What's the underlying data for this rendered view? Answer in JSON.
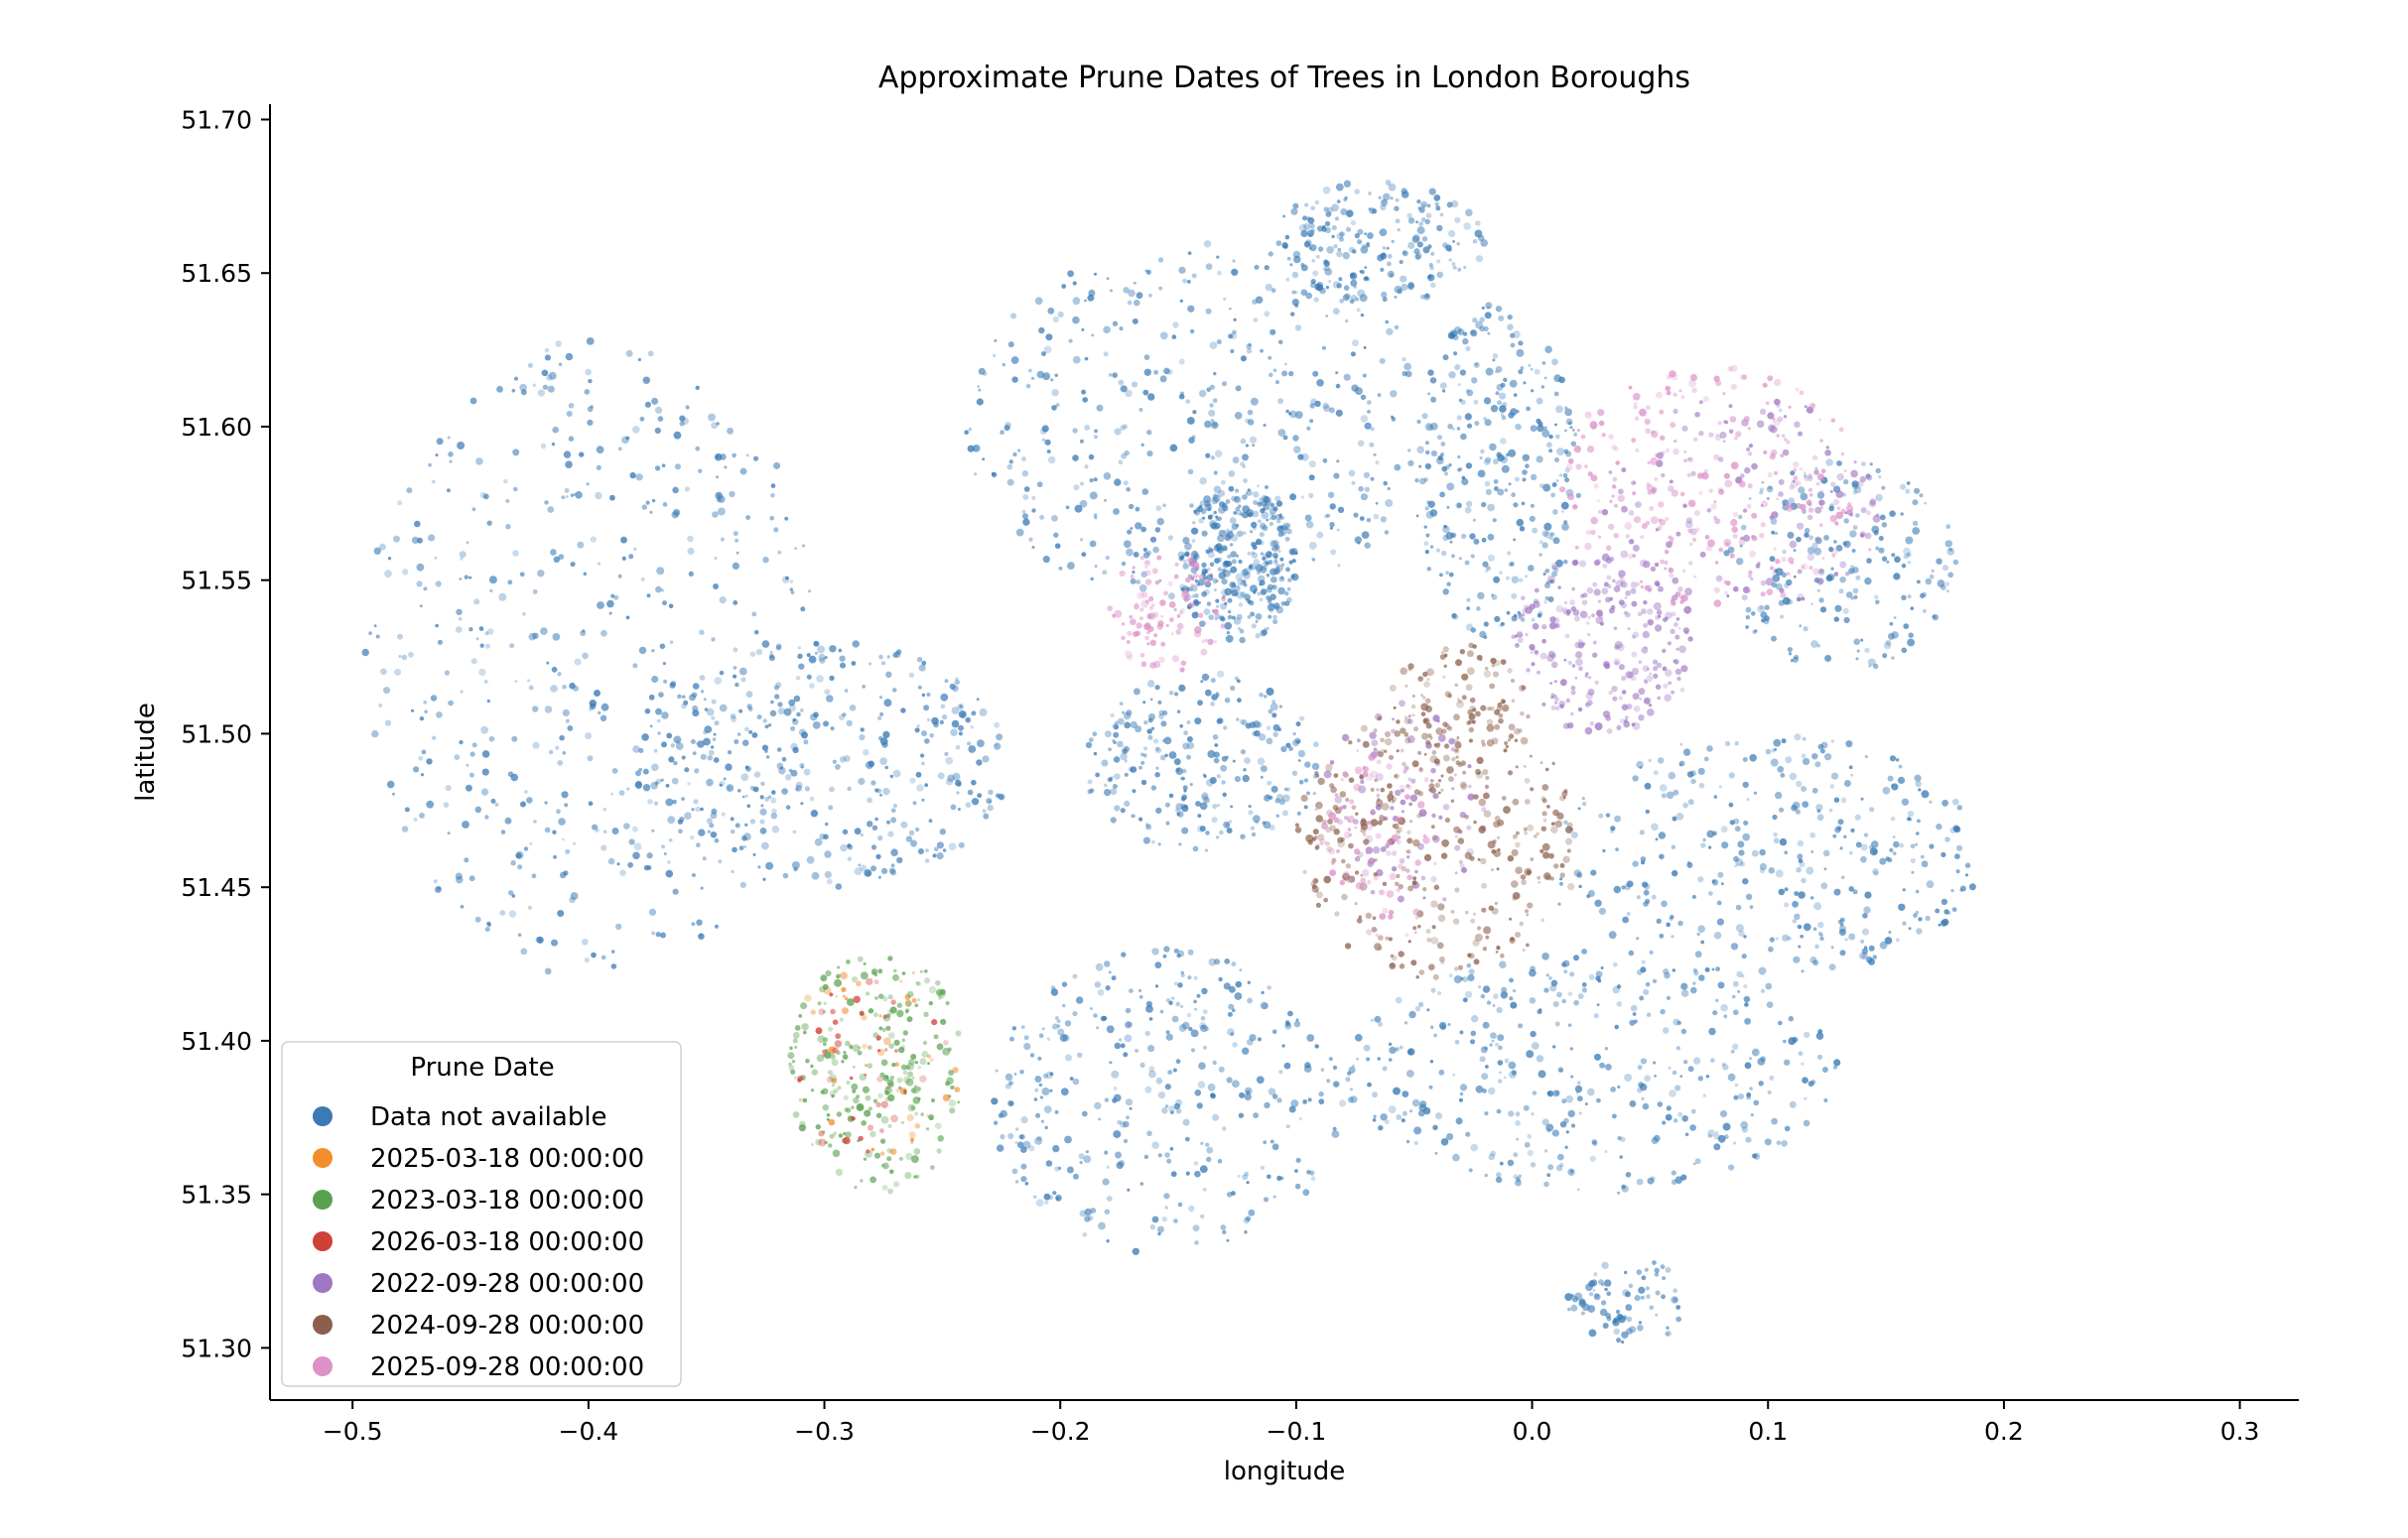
{
  "chart_data": {
    "type": "scatter",
    "title": "Approximate Prune Dates of Trees in London Boroughs",
    "xlabel": "longitude",
    "ylabel": "latitude",
    "xlim": [
      -0.535,
      0.325
    ],
    "ylim": [
      51.283,
      51.705
    ],
    "xticks": [
      -0.5,
      -0.4,
      -0.3,
      -0.2,
      -0.1,
      0.0,
      0.1,
      0.2,
      0.3
    ],
    "xtick_labels": [
      "−0.5",
      "−0.4",
      "−0.3",
      "−0.2",
      "−0.1",
      "0.0",
      "0.1",
      "0.2",
      "0.3"
    ],
    "yticks": [
      51.3,
      51.35,
      51.4,
      51.45,
      51.5,
      51.55,
      51.6,
      51.65,
      51.7
    ],
    "ytick_labels": [
      "51.30",
      "51.35",
      "51.40",
      "51.45",
      "51.50",
      "51.55",
      "51.60",
      "51.65",
      "51.70"
    ],
    "grid": false,
    "legend": {
      "title": "Prune Date",
      "placement": "lower-left"
    },
    "series": [
      {
        "name": "Data not available",
        "color": "#3a7ab5",
        "regions": [
          {
            "x": [
              -0.495,
              -0.3
            ],
            "y": [
              51.42,
              51.63
            ],
            "weight": 1.0
          },
          {
            "x": [
              -0.38,
              -0.22
            ],
            "y": [
              51.45,
              51.53
            ],
            "weight": 0.7
          },
          {
            "x": [
              -0.24,
              -0.04
            ],
            "y": [
              51.54,
              51.66
            ],
            "weight": 0.9
          },
          {
            "x": [
              -0.15,
              -0.1
            ],
            "y": [
              51.53,
              51.58
            ],
            "weight": 0.6
          },
          {
            "x": [
              -0.11,
              -0.02
            ],
            "y": [
              51.64,
              51.68
            ],
            "weight": 0.4
          },
          {
            "x": [
              -0.05,
              0.02
            ],
            "y": [
              51.53,
              51.64
            ],
            "weight": 0.6
          },
          {
            "x": [
              0.08,
              0.18
            ],
            "y": [
              51.52,
              51.59
            ],
            "weight": 0.4
          },
          {
            "x": [
              -0.23,
              -0.08
            ],
            "y": [
              51.33,
              51.43
            ],
            "weight": 0.7
          },
          {
            "x": [
              -0.08,
              0.13
            ],
            "y": [
              51.35,
              51.43
            ],
            "weight": 0.8
          },
          {
            "x": [
              0.01,
              0.19
            ],
            "y": [
              51.42,
              51.5
            ],
            "weight": 0.7
          },
          {
            "x": [
              -0.19,
              -0.09
            ],
            "y": [
              51.46,
              51.52
            ],
            "weight": 0.5
          },
          {
            "x": [
              0.015,
              0.065
            ],
            "y": [
              51.3,
              51.33
            ],
            "weight": 0.15
          }
        ]
      },
      {
        "name": "2025-03-18 00:00:00",
        "color": "#f28e2b",
        "regions": [
          {
            "x": [
              -0.315,
              -0.24
            ],
            "y": [
              51.36,
              51.43
            ],
            "weight": 0.08
          }
        ]
      },
      {
        "name": "2023-03-18 00:00:00",
        "color": "#59a14f",
        "regions": [
          {
            "x": [
              -0.315,
              -0.24
            ],
            "y": [
              51.35,
              51.43
            ],
            "weight": 0.5
          }
        ]
      },
      {
        "name": "2026-03-18 00:00:00",
        "color": "#cf4037",
        "regions": [
          {
            "x": [
              -0.315,
              -0.245
            ],
            "y": [
              51.36,
              51.42
            ],
            "weight": 0.08
          }
        ]
      },
      {
        "name": "2022-09-28 00:00:00",
        "color": "#a077c2",
        "regions": [
          {
            "x": [
              -0.01,
              0.07
            ],
            "y": [
              51.5,
              51.56
            ],
            "weight": 0.5
          },
          {
            "x": [
              0.03,
              0.15
            ],
            "y": [
              51.54,
              51.61
            ],
            "weight": 0.3
          },
          {
            "x": [
              -0.09,
              -0.02
            ],
            "y": [
              51.44,
              51.51
            ],
            "weight": 0.2
          }
        ]
      },
      {
        "name": "2024-09-28 00:00:00",
        "color": "#8c5f4c",
        "regions": [
          {
            "x": [
              -0.1,
              0.02
            ],
            "y": [
              51.42,
              51.51
            ],
            "weight": 0.7
          },
          {
            "x": [
              -0.06,
              0.0
            ],
            "y": [
              51.49,
              51.53
            ],
            "weight": 0.2
          }
        ]
      },
      {
        "name": "2025-09-28 00:00:00",
        "color": "#dd91c8",
        "regions": [
          {
            "x": [
              0.01,
              0.14
            ],
            "y": [
              51.54,
              51.62
            ],
            "weight": 0.5
          },
          {
            "x": [
              -0.18,
              -0.13
            ],
            "y": [
              51.52,
              51.56
            ],
            "weight": 0.2
          },
          {
            "x": [
              -0.09,
              -0.04
            ],
            "y": [
              51.43,
              51.5
            ],
            "weight": 0.15
          }
        ]
      }
    ]
  }
}
